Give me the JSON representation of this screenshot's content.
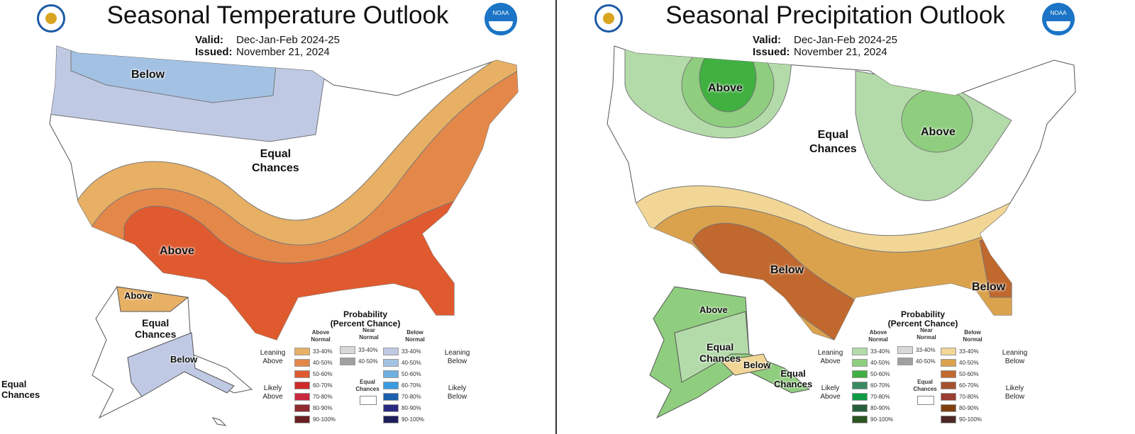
{
  "temperature": {
    "title": "Seasonal Temperature Outlook",
    "valid_label": "Valid:",
    "valid": "Dec-Jan-Feb 2024-25",
    "issued_label": "Issued:",
    "issued": "November 21, 2024",
    "labels": {
      "below": "Below",
      "equal": "Equal\nChances",
      "above": "Above",
      "ak_above": "Above",
      "ak_equal": "Equal\nChances",
      "ak_below": "Below",
      "hi_equal": "Equal\nChances"
    }
  },
  "precipitation": {
    "title": "Seasonal Precipitation Outlook",
    "valid_label": "Valid:",
    "valid": "Dec-Jan-Feb 2024-25",
    "issued_label": "Issued:",
    "issued": "November 21, 2024",
    "labels": {
      "above_nw": "Above",
      "equal": "Equal\nChances",
      "above_gl": "Above",
      "below_sw": "Below",
      "below_se": "Below",
      "ak_above": "Above",
      "ak_equal": "Equal\nChances",
      "ak_below": "Below",
      "hi_equal": "Equal\nChances"
    }
  },
  "legend": {
    "title": "Probability\n(Percent Chance)",
    "above_header": "Above\nNormal",
    "near_header": "Near\nNormal",
    "below_header": "Below\nNormal",
    "leaning_above": "Leaning\nAbove",
    "likely_above": "Likely\nAbove",
    "leaning_below": "Leaning\nBelow",
    "likely_below": "Likely\nBelow",
    "equal_chances": "Equal\nChances",
    "ranges": [
      "33-40%",
      "40-50%",
      "50-60%",
      "60-70%",
      "70-80%",
      "80-90%",
      "90-100%"
    ],
    "near_ranges": [
      "33-40%",
      "40-50%"
    ]
  },
  "colors": {
    "temp_above": [
      "#e8b064",
      "#e4884a",
      "#e05a30",
      "#cf2a2a",
      "#c8263f",
      "#8f2a30",
      "#6b1f22"
    ],
    "temp_below": [
      "#c0c9e4",
      "#a3c2e3",
      "#6fb0e3",
      "#3b9be0",
      "#1a5fad",
      "#2a2a80",
      "#1f1f5c"
    ],
    "prcp_above": [
      "#b3dba9",
      "#8fce7e",
      "#40b040",
      "#3a8a63",
      "#119a46",
      "#285e3e",
      "#2b5420"
    ],
    "prcp_below": [
      "#f1d696",
      "#dba24e",
      "#c0682e",
      "#a5512e",
      "#9a3d33",
      "#7f4010",
      "#4d2826"
    ],
    "near": [
      "#d8d8d8",
      "#a0a0a0"
    ]
  }
}
